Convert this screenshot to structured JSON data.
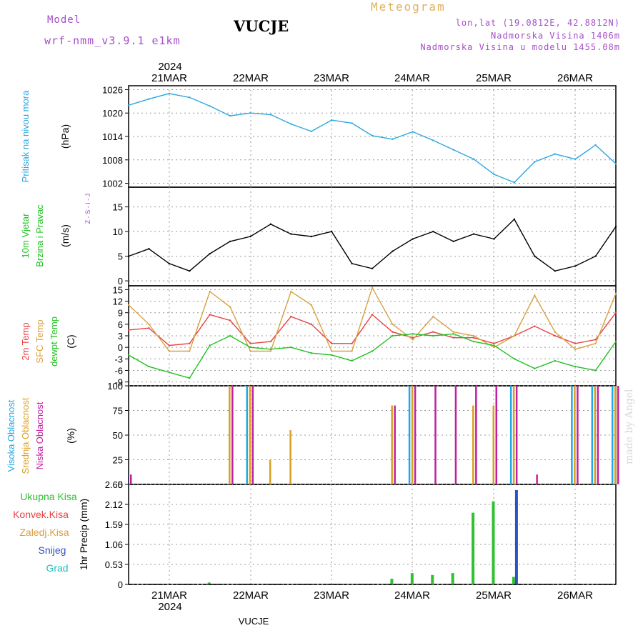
{
  "header": {
    "model_label": "Model",
    "model_name": "wrf-nmm_v3.9.1 e1km",
    "site": "VUCJE",
    "title": "Meteogram",
    "lonlat": "lon,lat (19.0812E, 42.8812N)",
    "altitude": "Nadmorska Visina 1406m",
    "model_altitude": "Nadmorska Visina u modelu 1455.08m",
    "made_by": "made by Angel",
    "footer_site": "VUCJE"
  },
  "colors": {
    "pressure": "#2aa8e0",
    "temp2m": "#e84040",
    "sfc_temp": "#d8a040",
    "dewpoint": "#20c020",
    "high_cloud": "#20a8e8",
    "mid_cloud": "#d8a020",
    "low_cloud": "#c020a0",
    "rain": "#30c030",
    "snow": "#3050c0"
  },
  "chart_data": [
    {
      "type": "line",
      "x": [
        "20MAR 12",
        "20MAR 18",
        "21MAR 00",
        "21MAR 06",
        "21MAR 12",
        "21MAR 18",
        "22MAR 00",
        "22MAR 06",
        "22MAR 12",
        "22MAR 18",
        "23MAR 00",
        "23MAR 06",
        "23MAR 12",
        "23MAR 18",
        "24MAR 00",
        "24MAR 06",
        "24MAR 12",
        "24MAR 18",
        "25MAR 00",
        "25MAR 06",
        "25MAR 12",
        "25MAR 18",
        "26MAR 00",
        "26MAR 06",
        "26MAR 12"
      ],
      "x_ticks": [
        "21MAR",
        "22MAR",
        "23MAR",
        "24MAR",
        "25MAR",
        "26MAR"
      ],
      "year": "2024",
      "ylabel_side": "Pritisak na nivou mora",
      "ylabel": "(hPa)",
      "yticks": [
        1002,
        1008,
        1014,
        1020,
        1026
      ],
      "ylim": [
        1001,
        1027
      ],
      "series": [
        {
          "values": [
            1022.0,
            1023.6,
            1025.0,
            1024.0,
            1021.8,
            1019.3,
            1020.0,
            1019.6,
            1017.2,
            1015.3,
            1018.2,
            1017.4,
            1014.2,
            1013.3,
            1015.2,
            1013.0,
            1010.6,
            1008.2,
            1004.3,
            1002.2,
            1007.5,
            1009.5,
            1008.2,
            1011.8,
            1007.0
          ]
        }
      ]
    },
    {
      "type": "line",
      "ylabel_side": "10m Vjetar Brzina i Pravac",
      "ylabel": "(m/s)",
      "direction_legend": "Z - S - I - J",
      "yticks": [
        0,
        5,
        10,
        15
      ],
      "ylim": [
        -1,
        19
      ],
      "series": [
        {
          "values": [
            5.0,
            6.5,
            3.5,
            2.0,
            5.5,
            8.0,
            9.0,
            11.5,
            9.5,
            9.0,
            10.0,
            3.5,
            2.5,
            6.0,
            8.5,
            10.0,
            8.0,
            9.5,
            8.5,
            12.5,
            5.0,
            2.0,
            3.0,
            5.0,
            11.0
          ]
        }
      ]
    },
    {
      "type": "line",
      "ylabel_side": "2m Temp / SFC Temp / dewpt Temp",
      "ylabel": "(C)",
      "yticks": [
        -9,
        -6,
        -3,
        0,
        3,
        6,
        9,
        12,
        15
      ],
      "ylim": [
        -10,
        16
      ],
      "series": [
        {
          "name": "2m Temp",
          "values": [
            4.5,
            5.0,
            0.5,
            1.0,
            8.5,
            7.0,
            1.0,
            1.5,
            8.0,
            6.0,
            1.0,
            1.0,
            8.5,
            4.0,
            2.5,
            4.0,
            2.5,
            2.5,
            1.0,
            3.0,
            5.5,
            3.0,
            1.0,
            2.0,
            9.0
          ]
        },
        {
          "name": "SFC Temp",
          "values": [
            11.0,
            6.0,
            -1.0,
            -1.0,
            14.5,
            10.5,
            -1.0,
            -1.0,
            14.5,
            11.0,
            -1.0,
            -1.0,
            15.5,
            6.0,
            2.0,
            8.0,
            4.0,
            3.0,
            0.0,
            3.0,
            13.5,
            4.0,
            -0.5,
            1.0,
            14.0
          ]
        },
        {
          "name": "dewpt Temp",
          "values": [
            -2.0,
            -5.0,
            -6.5,
            -8.0,
            0.5,
            3.0,
            0.0,
            -0.5,
            0.0,
            -1.5,
            -2.0,
            -3.5,
            -1.0,
            3.0,
            3.5,
            3.0,
            3.5,
            1.5,
            0.5,
            -3.0,
            -5.5,
            -3.5,
            -5.0,
            -6.0,
            1.5
          ]
        }
      ]
    },
    {
      "type": "bar",
      "ylabel_side": "Visoka Oblacnost / Srednja Oblacnost / Niska Oblacnost",
      "ylabel": "(%)",
      "yticks": [
        0,
        25,
        50,
        75,
        100
      ],
      "ylim": [
        0,
        100
      ],
      "series": [
        {
          "name": "Visoka Oblacnost",
          "values": [
            0,
            0,
            0,
            0,
            0,
            0,
            100,
            0,
            0,
            0,
            0,
            0,
            0,
            0,
            100,
            0,
            0,
            0,
            0,
            100,
            0,
            0,
            100,
            100,
            100
          ]
        },
        {
          "name": "Srednja Oblacnost",
          "values": [
            0,
            0,
            0,
            0,
            0,
            100,
            100,
            25,
            55,
            0,
            0,
            0,
            0,
            80,
            100,
            0,
            0,
            80,
            80,
            100,
            0,
            0,
            100,
            100,
            100
          ]
        },
        {
          "name": "Niska Oblacnost",
          "values": [
            10,
            0,
            0,
            0,
            0,
            100,
            100,
            0,
            0,
            0,
            0,
            0,
            0,
            80,
            100,
            100,
            100,
            100,
            100,
            100,
            10,
            0,
            100,
            100,
            100
          ]
        }
      ]
    },
    {
      "type": "bar",
      "ylabel": "1hr Precip (mm)",
      "legend": [
        "Ukupna Kisa",
        "Konvek.Kisa",
        "Zaledj.Kisa",
        "Snijeg",
        "Grad"
      ],
      "yticks": [
        0,
        0.53,
        1.06,
        1.59,
        2.12,
        2.65
      ],
      "ylim": [
        0,
        2.65
      ],
      "series": [
        {
          "name": "Ukupna Kisa",
          "values": [
            0,
            0,
            0,
            0,
            0.05,
            0.02,
            0,
            0,
            0,
            0,
            0,
            0,
            0,
            0.15,
            0.3,
            0.25,
            0.3,
            1.9,
            2.2,
            0.2,
            0,
            0,
            0,
            0,
            0.02
          ]
        },
        {
          "name": "Snijeg",
          "values": [
            0,
            0,
            0,
            0,
            0,
            0,
            0,
            0,
            0,
            0,
            0,
            0,
            0,
            0,
            0,
            0,
            0,
            0,
            0,
            2.5,
            0,
            0,
            0,
            0,
            0
          ]
        }
      ]
    }
  ]
}
